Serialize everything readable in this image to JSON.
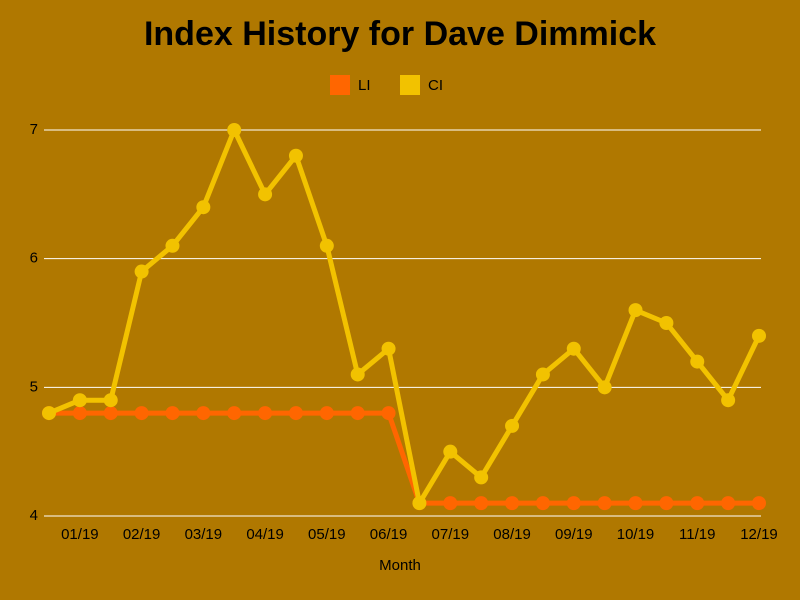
{
  "chart_data": {
    "type": "line",
    "title": "Index History for Dave Dimmick",
    "x_label": "Month",
    "categories": [
      null,
      "01/19",
      null,
      "02/19",
      null,
      "03/19",
      null,
      "04/19",
      null,
      "05/19",
      null,
      "06/19",
      null,
      "07/19",
      null,
      "08/19",
      null,
      "09/19",
      null,
      "10/19",
      null,
      "11/19",
      null,
      "12/19"
    ],
    "series": [
      {
        "name": "LI",
        "color": "#ff6600",
        "values": [
          4.8,
          4.8,
          4.8,
          4.8,
          4.8,
          4.8,
          4.8,
          4.8,
          4.8,
          4.8,
          4.8,
          4.8,
          4.1,
          4.1,
          4.1,
          4.1,
          4.1,
          4.1,
          4.1,
          4.1,
          4.1,
          4.1,
          4.1,
          4.1
        ]
      },
      {
        "name": "CI",
        "color": "#f2c200",
        "values": [
          4.8,
          4.9,
          4.9,
          5.9,
          6.1,
          6.4,
          7.0,
          6.5,
          6.8,
          6.1,
          5.1,
          5.3,
          4.1,
          4.5,
          4.3,
          4.7,
          5.1,
          5.3,
          5.0,
          5.6,
          5.5,
          5.2,
          4.9,
          5.4
        ]
      }
    ],
    "ylim": [
      4,
      7
    ],
    "yticks": [
      4,
      5,
      6,
      7
    ],
    "grid": true,
    "legend": "top"
  }
}
